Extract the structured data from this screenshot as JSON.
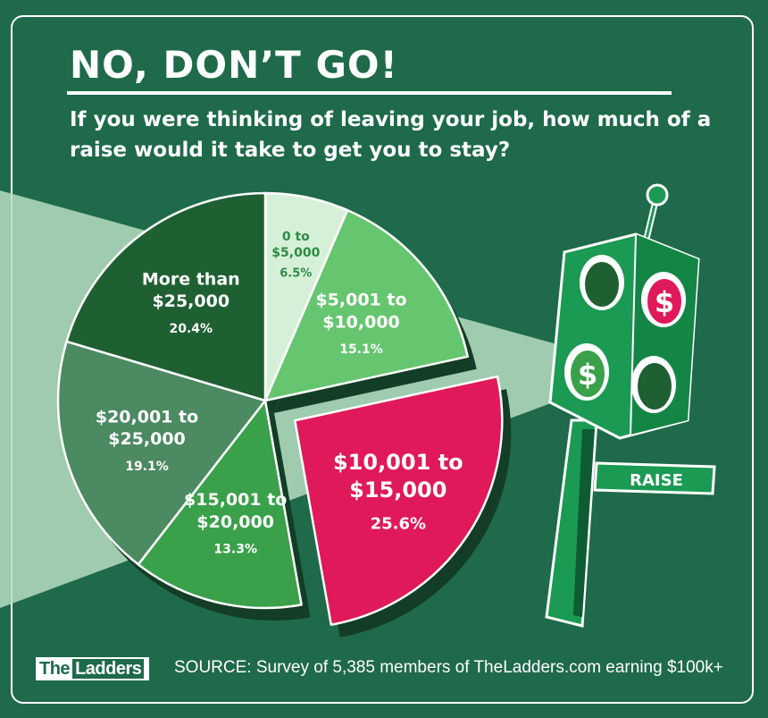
{
  "header": {
    "title": "NO, DON’T GO!",
    "question": "If you were thinking of leaving your job, how much of a raise would it take to get you to stay?"
  },
  "footer": {
    "logo_prefix": "The",
    "logo_name": "Ladders",
    "source": "SOURCE:  Survey of 5,385 members of TheLadders.com earning $100k+"
  },
  "traffic_light": {
    "sign_label": "RAISE",
    "dollar_symbol": "$"
  },
  "colors": {
    "background": "#1e6a4a",
    "slice_0_5000": "#d6f0d8",
    "slice_5001_10000": "#66c66f",
    "slice_10001_15000": "#e0195a",
    "slice_15001_20000": "#3aa04a",
    "slice_20001_25000": "#4c8a62",
    "slice_25000_plus": "#1f6033"
  },
  "chart_data": {
    "type": "pie",
    "title": "NO, DON’T GO!",
    "subtitle": "If you were thinking of leaving your job, how much of a raise would it take to get you to stay?",
    "unit": "%",
    "slices": [
      {
        "label": [
          "0 to",
          "$5,000"
        ],
        "value": 6.5,
        "display": "6.5%",
        "color": "#d6f0d8",
        "text_color": "#2e8b45",
        "exploded": false
      },
      {
        "label": [
          "$5,001 to",
          "$10,000"
        ],
        "value": 15.1,
        "display": "15.1%",
        "color": "#66c66f",
        "text_color": "#ffffff",
        "exploded": false
      },
      {
        "label": [
          "$10,001 to",
          "$15,000"
        ],
        "value": 25.6,
        "display": "25.6%",
        "color": "#e0195a",
        "text_color": "#ffffff",
        "exploded": true
      },
      {
        "label": [
          "$15,001 to",
          "$20,000"
        ],
        "value": 13.3,
        "display": "13.3%",
        "color": "#3aa04a",
        "text_color": "#ffffff",
        "exploded": false
      },
      {
        "label": [
          "$20,001 to",
          "$25,000"
        ],
        "value": 19.1,
        "display": "19.1%",
        "color": "#4c8a62",
        "text_color": "#ffffff",
        "exploded": false
      },
      {
        "label": [
          "More than",
          "$25,000"
        ],
        "value": 20.4,
        "display": "20.4%",
        "color": "#1f6033",
        "text_color": "#ffffff",
        "exploded": false
      }
    ]
  }
}
